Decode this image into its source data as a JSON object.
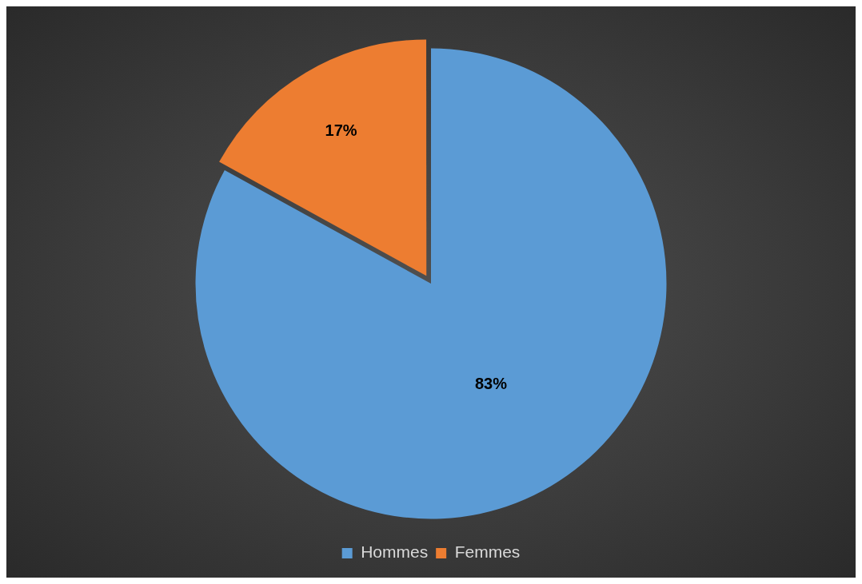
{
  "chart_data": {
    "type": "pie",
    "categories": [
      "Hommes",
      "Femmes"
    ],
    "values": [
      83,
      17
    ],
    "colors": [
      "#5b9bd5",
      "#ed7d31"
    ],
    "value_labels": [
      "83%",
      "17%"
    ],
    "legend": "bottom"
  }
}
